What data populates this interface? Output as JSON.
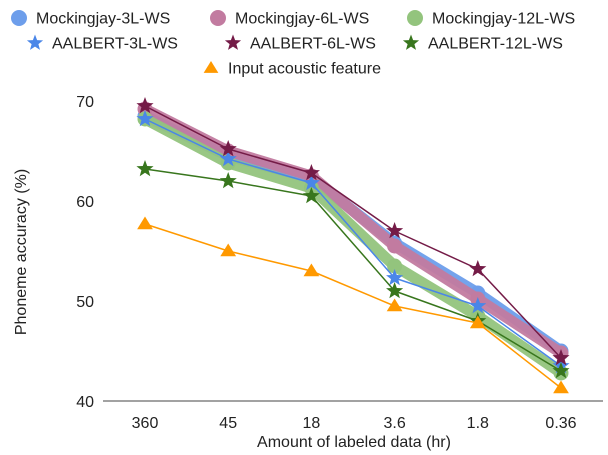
{
  "chart_data": {
    "type": "line",
    "xlabel": "Amount of labeled data (hr)",
    "ylabel": "Phoneme accuracy (%)",
    "categories": [
      "360",
      "45",
      "18",
      "3.6",
      "1.8",
      "0.36"
    ],
    "ylim": [
      40,
      70
    ],
    "yticks": [
      40,
      50,
      60,
      70
    ],
    "grid": false,
    "legend_position": "top",
    "series": [
      {
        "name": "Mockingjay-3L-WS",
        "marker": "circle",
        "color": "#6d9eeb",
        "style": "thick",
        "values": [
          68.5,
          64.5,
          62.3,
          55.8,
          50.8,
          45.0
        ]
      },
      {
        "name": "Mockingjay-6L-WS",
        "marker": "circle",
        "color": "#c27ba0",
        "style": "thick",
        "values": [
          69.2,
          65.0,
          62.5,
          55.5,
          50.2,
          44.8
        ]
      },
      {
        "name": "Mockingjay-12L-WS",
        "marker": "circle",
        "color": "#93c47d",
        "style": "thick",
        "values": [
          68.2,
          63.8,
          61.3,
          53.5,
          48.5,
          42.8
        ]
      },
      {
        "name": "AALBERT-3L-WS",
        "marker": "star",
        "color": "#4a86e8",
        "style": "thin",
        "values": [
          68.2,
          64.2,
          61.8,
          52.3,
          49.5,
          43.5
        ]
      },
      {
        "name": "AALBERT-6L-WS",
        "marker": "star",
        "color": "#741b47",
        "style": "thin",
        "values": [
          69.5,
          65.2,
          62.8,
          57.0,
          53.2,
          44.3
        ]
      },
      {
        "name": "AALBERT-12L-WS",
        "marker": "star",
        "color": "#38761d",
        "style": "thin",
        "values": [
          63.2,
          62.0,
          60.5,
          51.0,
          48.0,
          43.0
        ]
      },
      {
        "name": "Input acoustic feature",
        "marker": "triangle",
        "color": "#ff9900",
        "style": "thin",
        "values": [
          57.7,
          55.0,
          53.0,
          49.5,
          47.8,
          41.3
        ]
      }
    ]
  }
}
